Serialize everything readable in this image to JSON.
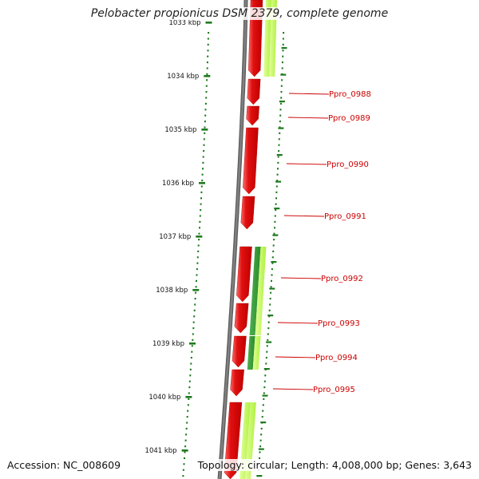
{
  "title": "Pelobacter propionicus DSM 2379, complete genome",
  "footer": {
    "accession": "Accession: NC_008609",
    "summary": "Topology: circular; Length: 4,008,000 bp; Genes: 3,643"
  },
  "colors": {
    "backbone": "#808080",
    "tick": "#1e7a1e",
    "forward_gene": "#e01010",
    "reverse_gene_dark": "#2a8a2a",
    "reverse_gene_light": "#b0f040",
    "label": "#cc0000"
  },
  "scale_labels": [
    "1033 kbp",
    "1034 kbp",
    "1035 kbp",
    "1036 kbp",
    "1037 kbp",
    "1038 kbp",
    "1039 kbp",
    "1040 kbp",
    "1041 kbp"
  ],
  "gene_labels": [
    "Ppro_0988",
    "Ppro_0989",
    "Ppro_0990",
    "Ppro_0991",
    "Ppro_0992",
    "Ppro_0993",
    "Ppro_0994",
    "Ppro_0995"
  ]
}
